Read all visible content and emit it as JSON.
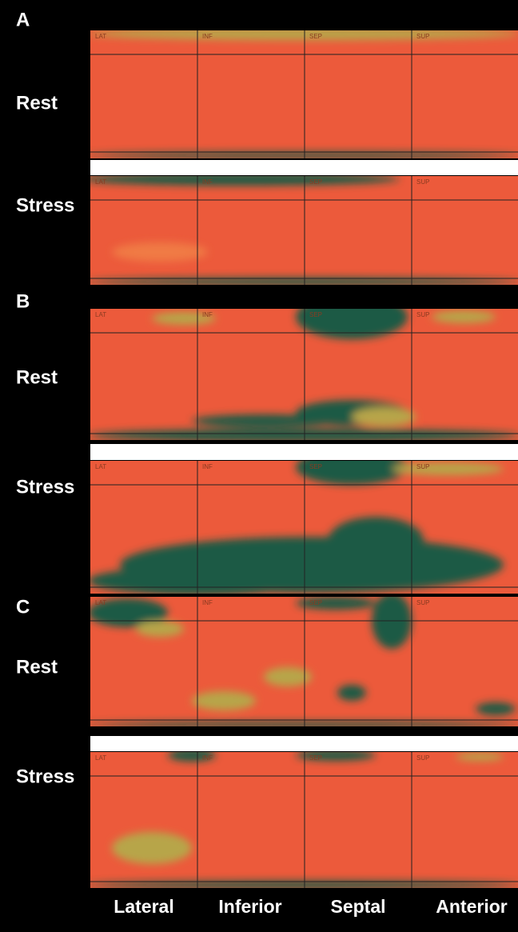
{
  "panels": [
    {
      "label": "A",
      "rows": [
        {
          "label": "Rest",
          "segments": [
            "LAT",
            "INF",
            "SEP",
            "SUP"
          ]
        },
        {
          "label": "Stress",
          "segments": [
            "LAT",
            "INF",
            "SEP",
            "SUP"
          ]
        }
      ]
    },
    {
      "label": "B",
      "rows": [
        {
          "label": "Rest",
          "segments": [
            "LAT",
            "INF",
            "SEP",
            "SUP"
          ]
        },
        {
          "label": "Stress",
          "segments": [
            "LAT",
            "INF",
            "SEP",
            "SUP"
          ]
        }
      ]
    },
    {
      "label": "C",
      "rows": [
        {
          "label": "Rest",
          "segments": [
            "LAT",
            "INF",
            "SEP",
            "SUP"
          ]
        },
        {
          "label": "Stress",
          "segments": [
            "LAT",
            "INF",
            "SEP",
            "SUP"
          ]
        }
      ]
    }
  ],
  "footer": [
    "Lateral",
    "Inferior",
    "Septal",
    "Anterior"
  ]
}
